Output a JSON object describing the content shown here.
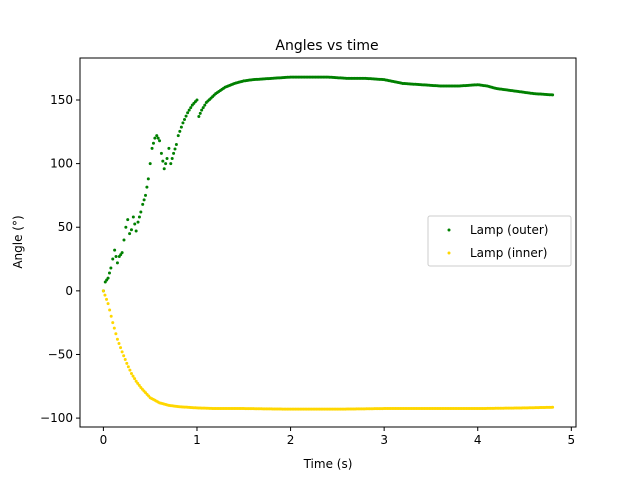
{
  "chart_data": {
    "type": "scatter",
    "title": "Angles vs time",
    "xlabel": "Time (s)",
    "ylabel": "Angle (°)",
    "xlim": [
      -0.25,
      5.05
    ],
    "ylim": [
      -107,
      183
    ],
    "xticks": [
      0,
      1,
      2,
      3,
      4,
      5
    ],
    "yticks": [
      -100,
      -50,
      0,
      50,
      100,
      150
    ],
    "grid": false,
    "legend_position": "center-right",
    "series": [
      {
        "name": "Lamp (outer)",
        "color": "#008000",
        "points": [
          [
            0.0,
            0
          ],
          [
            0.02,
            7
          ],
          [
            0.05,
            10
          ],
          [
            0.08,
            18
          ],
          [
            0.1,
            25
          ],
          [
            0.12,
            32
          ],
          [
            0.15,
            22
          ],
          [
            0.17,
            27
          ],
          [
            0.2,
            30
          ],
          [
            0.22,
            40
          ],
          [
            0.24,
            50
          ],
          [
            0.26,
            56
          ],
          [
            0.28,
            45
          ],
          [
            0.3,
            48
          ],
          [
            0.32,
            58
          ],
          [
            0.35,
            47
          ],
          [
            0.37,
            54
          ],
          [
            0.4,
            62
          ],
          [
            0.42,
            68
          ],
          [
            0.45,
            75
          ],
          [
            0.48,
            88
          ],
          [
            0.5,
            100
          ],
          [
            0.52,
            112
          ],
          [
            0.55,
            120
          ],
          [
            0.57,
            122
          ],
          [
            0.6,
            118
          ],
          [
            0.62,
            108
          ],
          [
            0.65,
            96
          ],
          [
            0.68,
            104
          ],
          [
            0.7,
            112
          ],
          [
            0.72,
            100
          ],
          [
            0.75,
            108
          ],
          [
            0.78,
            115
          ],
          [
            0.8,
            122
          ],
          [
            0.85,
            132
          ],
          [
            0.9,
            140
          ],
          [
            0.95,
            146
          ],
          [
            1.0,
            150
          ],
          [
            1.02,
            137
          ],
          [
            1.05,
            142
          ],
          [
            1.1,
            148
          ],
          [
            1.2,
            155
          ],
          [
            1.3,
            160
          ],
          [
            1.4,
            163
          ],
          [
            1.5,
            165
          ],
          [
            1.6,
            166
          ],
          [
            1.8,
            167
          ],
          [
            2.0,
            168
          ],
          [
            2.2,
            168
          ],
          [
            2.4,
            168
          ],
          [
            2.6,
            167
          ],
          [
            2.8,
            167
          ],
          [
            3.0,
            166
          ],
          [
            3.2,
            163
          ],
          [
            3.4,
            162
          ],
          [
            3.6,
            161
          ],
          [
            3.8,
            161
          ],
          [
            4.0,
            162
          ],
          [
            4.1,
            161
          ],
          [
            4.2,
            159
          ],
          [
            4.4,
            157
          ],
          [
            4.6,
            155
          ],
          [
            4.8,
            154
          ]
        ]
      },
      {
        "name": "Lamp (inner)",
        "color": "#ffd700",
        "points": [
          [
            0.0,
            0
          ],
          [
            0.05,
            -10
          ],
          [
            0.1,
            -25
          ],
          [
            0.15,
            -38
          ],
          [
            0.2,
            -48
          ],
          [
            0.25,
            -57
          ],
          [
            0.3,
            -65
          ],
          [
            0.35,
            -71
          ],
          [
            0.4,
            -76
          ],
          [
            0.45,
            -80
          ],
          [
            0.5,
            -84
          ],
          [
            0.6,
            -88
          ],
          [
            0.7,
            -90
          ],
          [
            0.8,
            -91
          ],
          [
            1.0,
            -92
          ],
          [
            1.2,
            -92.5
          ],
          [
            1.5,
            -92.5
          ],
          [
            2.0,
            -93
          ],
          [
            2.5,
            -93
          ],
          [
            3.0,
            -92.5
          ],
          [
            3.5,
            -92.5
          ],
          [
            4.0,
            -92.5
          ],
          [
            4.5,
            -92
          ],
          [
            4.8,
            -91.5
          ]
        ]
      }
    ]
  }
}
